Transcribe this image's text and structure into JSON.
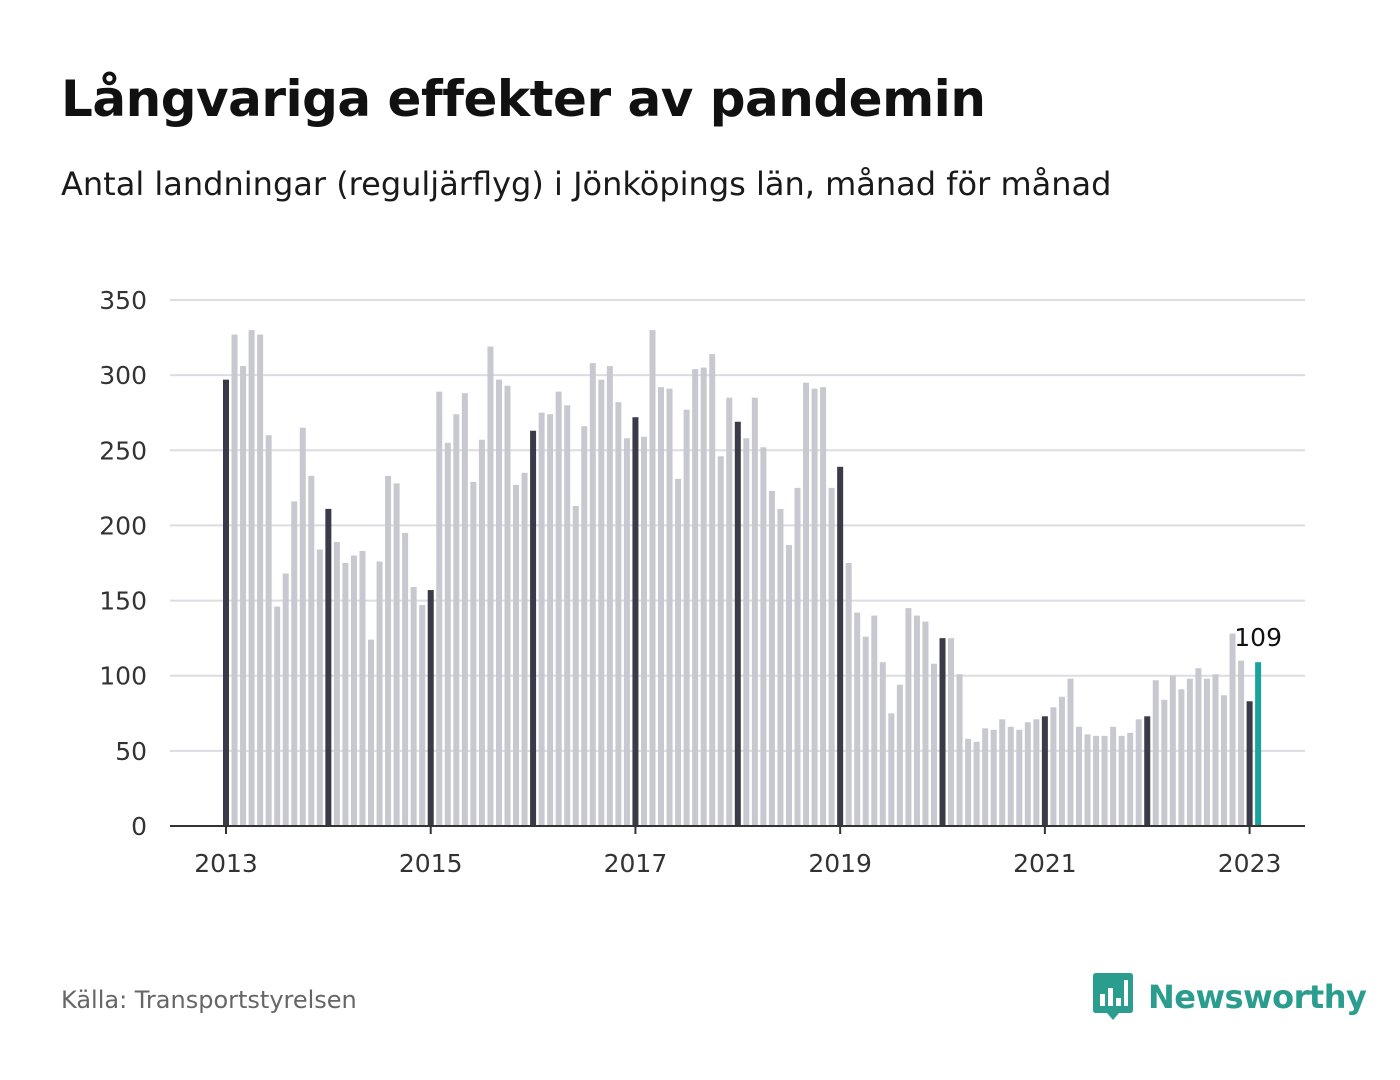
{
  "header": {
    "title": "Långvariga effekter av pandemin",
    "subtitle": "Antal landningar (reguljärflyg) i Jönköpings län, månad för månad"
  },
  "footer": {
    "source": "Källa: Transportstyrelsen",
    "brand": "Newsworthy",
    "brand_icon": "bar-chart-speech-bubble-icon"
  },
  "colors": {
    "bar": "#c8c8d0",
    "january_bar": "#3a3a48",
    "highlight_bar": "#1aa39a",
    "grid": "#dcdce2",
    "axis": "#333333",
    "brand": "#2a9d8f"
  },
  "chart_data": {
    "type": "bar",
    "title": "Långvariga effekter av pandemin",
    "subtitle": "Antal landningar (reguljärflyg) i Jönköpings län, månad för månad",
    "start": "2013-01",
    "interval": "month",
    "ylim": [
      0,
      350
    ],
    "y_ticks": [
      0,
      50,
      100,
      150,
      200,
      250,
      300,
      350
    ],
    "x_ticks": [
      "2013",
      "2015",
      "2017",
      "2019",
      "2021",
      "2023"
    ],
    "grid": true,
    "highlight_label": "109",
    "values": [
      297,
      327,
      306,
      330,
      327,
      260,
      146,
      168,
      216,
      265,
      233,
      184,
      211,
      189,
      175,
      180,
      183,
      124,
      176,
      233,
      228,
      195,
      159,
      147,
      157,
      289,
      255,
      274,
      288,
      229,
      257,
      319,
      297,
      293,
      227,
      235,
      263,
      275,
      274,
      289,
      280,
      213,
      266,
      308,
      297,
      306,
      282,
      258,
      272,
      259,
      330,
      292,
      291,
      231,
      277,
      304,
      305,
      314,
      246,
      285,
      269,
      258,
      285,
      252,
      223,
      211,
      187,
      225,
      295,
      291,
      292,
      225,
      239,
      175,
      142,
      126,
      140,
      109,
      75,
      94,
      145,
      140,
      136,
      108,
      125,
      125,
      101,
      58,
      56,
      65,
      64,
      71,
      66,
      64,
      69,
      71,
      73,
      79,
      86,
      98,
      66,
      61,
      60,
      60,
      66,
      60,
      62,
      71,
      73,
      97,
      84,
      100,
      91,
      98,
      105,
      98,
      101,
      87,
      128,
      110,
      83,
      109
    ]
  }
}
